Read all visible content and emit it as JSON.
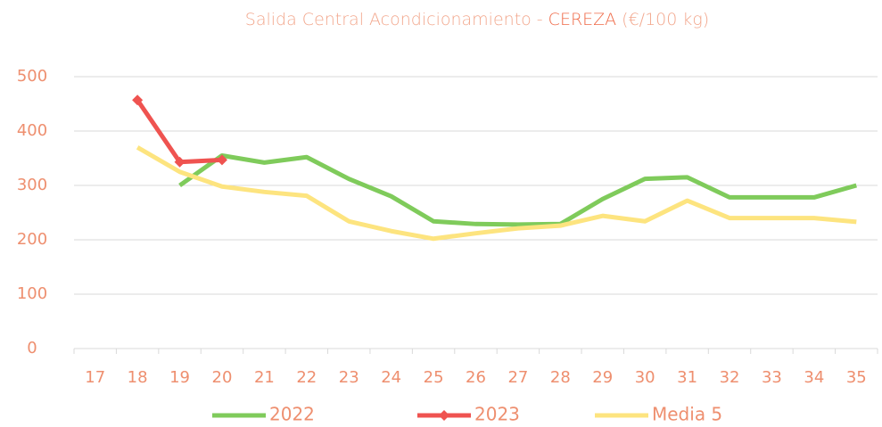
{
  "chart_data": {
    "type": "line",
    "title_parts": [
      "Salida Central Acondicionamiento -",
      "CEREZA",
      "(€/100 kg)"
    ],
    "title_colors": [
      "#f2a78d",
      "#ef6a48",
      "#f2a78d"
    ],
    "categories": [
      "17",
      "18",
      "19",
      "20",
      "21",
      "22",
      "23",
      "24",
      "25",
      "26",
      "27",
      "28",
      "29",
      "30",
      "31",
      "32",
      "33",
      "34",
      "35"
    ],
    "series": [
      {
        "name": "2022",
        "color": "#7fcb5b",
        "marker": false,
        "values": [
          null,
          null,
          300,
          355,
          342,
          352,
          312,
          280,
          234,
          229,
          228,
          229,
          275,
          312,
          315,
          278,
          278,
          278,
          300
        ]
      },
      {
        "name": "2023",
        "color": "#ef5350",
        "marker": true,
        "values": [
          null,
          457,
          343,
          347,
          null,
          null,
          null,
          null,
          null,
          null,
          null,
          null,
          null,
          null,
          null,
          null,
          null,
          null,
          null
        ]
      },
      {
        "name": "Media 5",
        "color": "#fde47f",
        "marker": false,
        "values": [
          null,
          370,
          325,
          298,
          288,
          281,
          234,
          216,
          202,
          212,
          221,
          226,
          244,
          234,
          272,
          240,
          240,
          240,
          233
        ]
      }
    ],
    "ylim": [
      0,
      500
    ],
    "yticks": [
      0,
      100,
      200,
      300,
      400,
      500
    ],
    "grid": true,
    "legend": "bottom"
  }
}
